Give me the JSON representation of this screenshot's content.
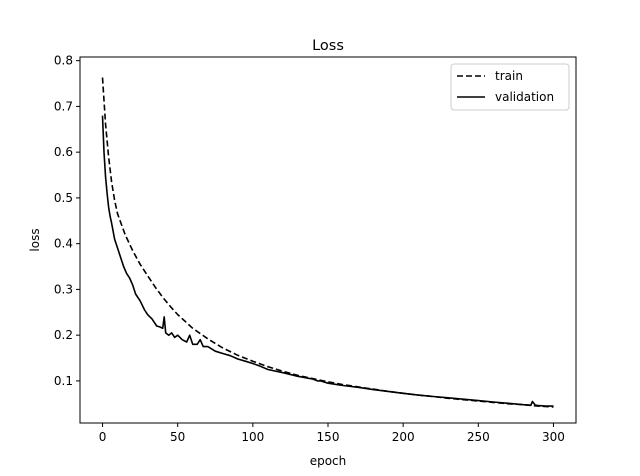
{
  "chart_data": {
    "type": "line",
    "title": "Loss",
    "xlabel": "epoch",
    "ylabel": "loss",
    "xlim": [
      -15,
      315
    ],
    "ylim": [
      0.008,
      0.808
    ],
    "xticks": [
      0,
      50,
      100,
      150,
      200,
      250,
      300
    ],
    "yticks": [
      0.1,
      0.2,
      0.3,
      0.4,
      0.5,
      0.6,
      0.7,
      0.8
    ],
    "grid": false,
    "legend": "top-right",
    "series": [
      {
        "name": "train",
        "style": "dashed",
        "color": "#000000",
        "x": [
          0,
          2,
          4,
          6,
          8,
          10,
          15,
          20,
          25,
          30,
          35,
          40,
          45,
          50,
          55,
          60,
          70,
          80,
          90,
          100,
          110,
          120,
          130,
          140,
          150,
          160,
          170,
          180,
          190,
          200,
          210,
          220,
          230,
          240,
          250,
          260,
          270,
          280,
          290,
          300
        ],
        "y": [
          0.763,
          0.66,
          0.59,
          0.535,
          0.495,
          0.465,
          0.42,
          0.385,
          0.355,
          0.33,
          0.305,
          0.283,
          0.263,
          0.245,
          0.23,
          0.215,
          0.192,
          0.172,
          0.156,
          0.143,
          0.131,
          0.121,
          0.112,
          0.105,
          0.098,
          0.092,
          0.087,
          0.082,
          0.077,
          0.073,
          0.069,
          0.066,
          0.062,
          0.059,
          0.056,
          0.053,
          0.05,
          0.048,
          0.045,
          0.043
        ]
      },
      {
        "name": "validation",
        "style": "solid",
        "color": "#000000",
        "x": [
          0,
          1,
          2,
          3,
          4,
          5,
          6,
          8,
          10,
          12,
          14,
          16,
          18,
          20,
          22,
          25,
          28,
          30,
          33,
          36,
          38,
          40,
          41,
          42,
          44,
          46,
          48,
          50,
          53,
          56,
          58,
          60,
          63,
          65,
          67,
          70,
          75,
          80,
          85,
          90,
          95,
          100,
          105,
          110,
          120,
          130,
          140,
          143,
          145,
          150,
          160,
          170,
          180,
          190,
          200,
          210,
          220,
          230,
          240,
          250,
          260,
          270,
          280,
          285,
          286,
          288,
          290,
          295,
          300
        ],
        "y": [
          0.68,
          0.6,
          0.545,
          0.51,
          0.48,
          0.46,
          0.445,
          0.41,
          0.39,
          0.37,
          0.35,
          0.335,
          0.325,
          0.31,
          0.29,
          0.275,
          0.255,
          0.245,
          0.235,
          0.22,
          0.218,
          0.215,
          0.24,
          0.205,
          0.2,
          0.205,
          0.195,
          0.2,
          0.19,
          0.185,
          0.2,
          0.18,
          0.18,
          0.19,
          0.175,
          0.175,
          0.165,
          0.16,
          0.155,
          0.148,
          0.143,
          0.138,
          0.132,
          0.125,
          0.118,
          0.11,
          0.104,
          0.1,
          0.1,
          0.095,
          0.09,
          0.086,
          0.081,
          0.077,
          0.073,
          0.069,
          0.066,
          0.063,
          0.06,
          0.057,
          0.054,
          0.051,
          0.048,
          0.047,
          0.055,
          0.047,
          0.046,
          0.045,
          0.045
        ]
      }
    ]
  }
}
